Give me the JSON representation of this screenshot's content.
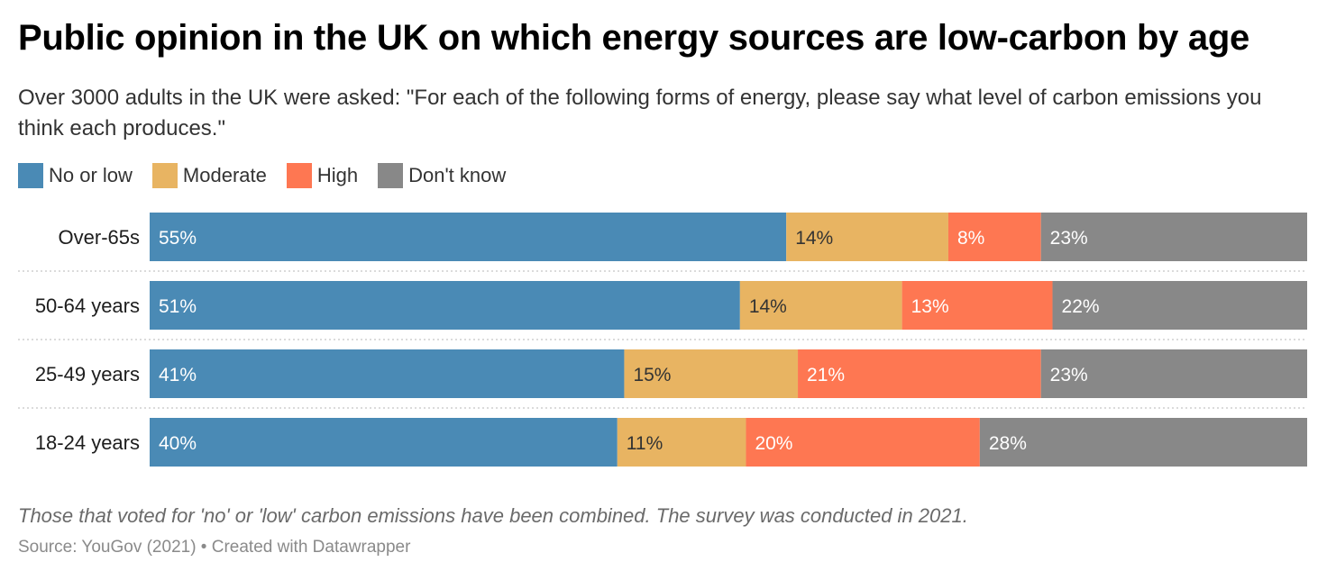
{
  "chart_data": {
    "type": "bar",
    "orientation": "horizontal",
    "stacked": true,
    "title": "Public opinion in the UK on which energy sources are low-carbon by age",
    "subtitle": "Over 3000 adults in the UK were asked: \"For each of the following forms of energy, please say what level of carbon emissions you think each produces.\"",
    "categories": [
      "Over-65s",
      "50-64 years",
      "25-49 years",
      "18-24 years"
    ],
    "series": [
      {
        "name": "No or low",
        "color": "#4a8ab5",
        "values": [
          55,
          51,
          41,
          40
        ],
        "labels": [
          "55%",
          "51%",
          "41%",
          "40%"
        ]
      },
      {
        "name": "Moderate",
        "color": "#e8b462",
        "values": [
          14,
          14,
          15,
          11
        ],
        "labels": [
          "14%",
          "14%",
          "15%",
          "11%"
        ]
      },
      {
        "name": "High",
        "color": "#fe7752",
        "values": [
          8,
          13,
          21,
          20
        ],
        "labels": [
          "8%",
          "13%",
          "21%",
          "20%"
        ]
      },
      {
        "name": "Don't know",
        "color": "#888888",
        "values": [
          23,
          22,
          23,
          28
        ],
        "labels": [
          "23%",
          "22%",
          "23%",
          "28%"
        ]
      }
    ],
    "label_colors": {
      "dark_text": "#333333",
      "light_text": "#ffffff"
    },
    "legend_position": "top-left",
    "notes": "Those that voted for 'no' or 'low' carbon emissions have been combined. The survey was conducted in 2021.",
    "source": "Source: YouGov (2021) • Created with Datawrapper"
  }
}
